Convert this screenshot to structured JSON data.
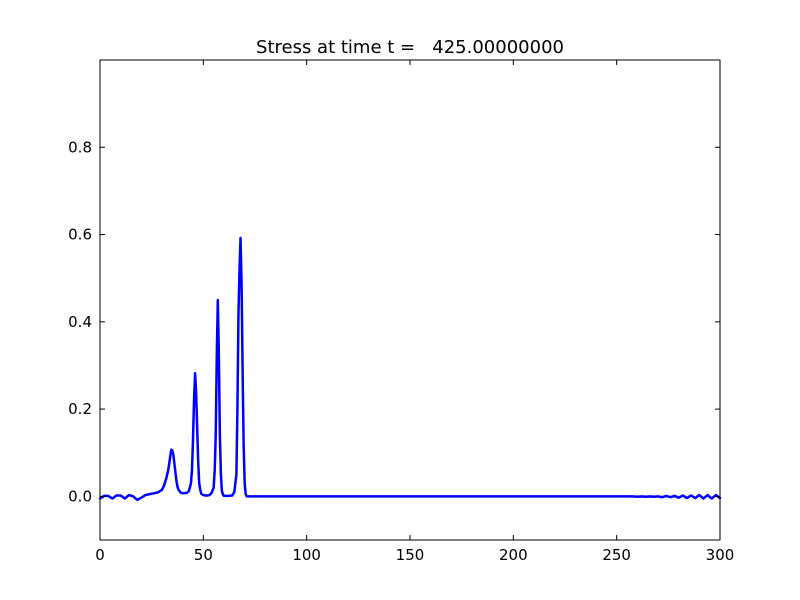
{
  "chart_data": {
    "type": "line",
    "title": "Stress at time t =   425.00000000",
    "xlabel": "",
    "ylabel": "",
    "xlim": [
      0,
      300
    ],
    "ylim": [
      -0.1,
      1.0
    ],
    "x_ticks": [
      0,
      50,
      100,
      150,
      200,
      250,
      300
    ],
    "x_tick_labels": [
      "0",
      "50",
      "100",
      "150",
      "200",
      "250",
      "300"
    ],
    "y_ticks": [
      0.0,
      0.2,
      0.4,
      0.6,
      0.8
    ],
    "y_tick_labels": [
      "0.0",
      "0.2",
      "0.4",
      "0.6",
      "0.8"
    ],
    "grid": false,
    "series": [
      {
        "color": "#0000ff",
        "x": [
          0,
          2,
          4,
          6,
          8,
          10,
          12,
          14,
          16,
          18,
          20,
          22,
          25,
          28,
          30,
          31,
          32,
          33,
          33.5,
          34,
          34.5,
          35,
          35.5,
          36,
          36.5,
          37,
          37.5,
          38,
          39,
          40,
          42,
          43,
          44,
          44.5,
          45,
          45.5,
          46,
          46.5,
          47,
          47.5,
          48,
          48.5,
          49,
          50,
          51,
          52,
          53,
          54,
          55,
          55.5,
          56,
          56.5,
          57,
          57.5,
          58,
          58.5,
          59,
          59.5,
          60,
          61,
          62,
          64,
          65,
          66,
          66.5,
          67,
          67.5,
          68,
          68.5,
          69,
          69.5,
          70,
          70.5,
          71,
          72,
          75,
          80,
          100,
          150,
          200,
          250,
          258,
          260,
          262,
          264,
          266,
          268,
          270,
          272,
          274,
          276,
          278,
          280,
          282,
          284,
          286,
          288,
          290,
          292,
          294,
          296,
          298,
          300
        ],
        "y": [
          -0.005,
          0.001,
          0.001,
          -0.005,
          0.002,
          0.002,
          -0.005,
          0.003,
          0.0,
          -0.008,
          -0.003,
          0.003,
          0.006,
          0.009,
          0.015,
          0.025,
          0.04,
          0.06,
          0.075,
          0.092,
          0.107,
          0.105,
          0.095,
          0.075,
          0.055,
          0.035,
          0.022,
          0.015,
          0.009,
          0.007,
          0.008,
          0.012,
          0.03,
          0.06,
          0.13,
          0.22,
          0.282,
          0.24,
          0.16,
          0.08,
          0.03,
          0.015,
          0.006,
          0.003,
          0.002,
          0.002,
          0.003,
          0.008,
          0.02,
          0.06,
          0.14,
          0.32,
          0.45,
          0.33,
          0.14,
          0.05,
          0.012,
          0.004,
          0.001,
          0.001,
          0.001,
          0.002,
          0.01,
          0.05,
          0.2,
          0.42,
          0.52,
          0.592,
          0.49,
          0.29,
          0.12,
          0.03,
          0.005,
          0.0,
          0.0,
          0.0,
          0.0,
          0.0,
          0.0,
          0.0,
          0.0,
          0.0,
          -0.001,
          0.0,
          -0.001,
          0.0,
          -0.001,
          0.0,
          -0.002,
          0.001,
          -0.002,
          0.001,
          -0.003,
          0.002,
          -0.004,
          0.002,
          -0.004,
          0.003,
          -0.005,
          0.003,
          -0.005,
          0.003,
          -0.004
        ]
      }
    ]
  }
}
